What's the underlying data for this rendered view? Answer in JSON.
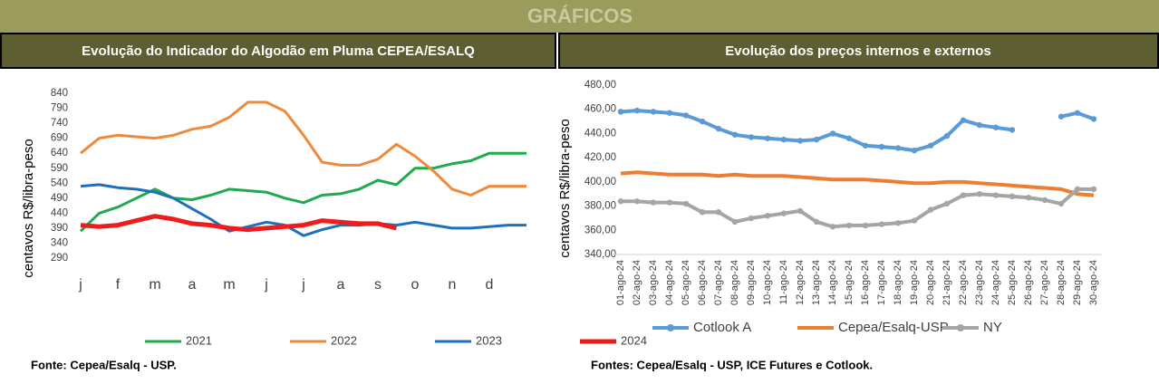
{
  "header": {
    "title": "GRÁFICOS"
  },
  "chart_data": [
    {
      "type": "line",
      "title": "Evolução do Indicador do Algodão em Pluma CEPEA/ESALQ",
      "y_label": "centavos R$/libra-peso",
      "source": "Fonte: Cepea/Esalq - USP.",
      "x": [
        0,
        0.5,
        1,
        1.5,
        2,
        2.5,
        3,
        3.5,
        4,
        4.5,
        5,
        5.5,
        6,
        6.5,
        7,
        7.5,
        8,
        8.5,
        9,
        9.5,
        10,
        10.5,
        11,
        11.5,
        12
      ],
      "xlim": [
        0,
        12
      ],
      "xticks": [
        {
          "value": 0,
          "label": "j"
        },
        {
          "value": 1,
          "label": "f"
        },
        {
          "value": 2,
          "label": "m"
        },
        {
          "value": 3,
          "label": "a"
        },
        {
          "value": 4,
          "label": "m"
        },
        {
          "value": 5,
          "label": "j"
        },
        {
          "value": 6,
          "label": "j"
        },
        {
          "value": 7,
          "label": "a"
        },
        {
          "value": 8,
          "label": "s"
        },
        {
          "value": 9,
          "label": "o"
        },
        {
          "value": 10,
          "label": "n"
        },
        {
          "value": 11,
          "label": "d"
        }
      ],
      "ylim": [
        290,
        840
      ],
      "yticks": [
        290,
        340,
        390,
        440,
        490,
        540,
        590,
        640,
        690,
        740,
        790,
        840
      ],
      "grid": false,
      "legend": "bottom",
      "series": [
        {
          "name": "2021",
          "color": "#1faa4e",
          "width": 3,
          "values": [
            380,
            440,
            460,
            490,
            520,
            490,
            485,
            500,
            520,
            515,
            510,
            490,
            475,
            500,
            505,
            520,
            550,
            535,
            590,
            590,
            605,
            615,
            640,
            640,
            640
          ]
        },
        {
          "name": "2022",
          "color": "#ef8a3c",
          "width": 3,
          "values": [
            640,
            690,
            700,
            695,
            690,
            700,
            720,
            730,
            760,
            810,
            810,
            780,
            700,
            610,
            600,
            600,
            620,
            670,
            630,
            580,
            520,
            500,
            530,
            530,
            530
          ]
        },
        {
          "name": "2023",
          "color": "#1f6fbf",
          "width": 3,
          "values": [
            530,
            535,
            525,
            520,
            510,
            490,
            455,
            420,
            380,
            395,
            410,
            400,
            365,
            385,
            400,
            400,
            405,
            400,
            410,
            400,
            390,
            390,
            395,
            400,
            400
          ]
        },
        {
          "name": "2024",
          "color": "#ee1c1c",
          "width": 5,
          "values": [
            400,
            395,
            400,
            415,
            430,
            420,
            405,
            400,
            390,
            385,
            390,
            395,
            400,
            415,
            410,
            405,
            405,
            390,
            null,
            null,
            null,
            null,
            null,
            null,
            null
          ]
        }
      ]
    },
    {
      "type": "line",
      "title": "Evolução dos preços internos e externos",
      "y_label": "centavos R$/libra-peso",
      "source": "Fontes: Cepea/Esalq - USP, ICE Futures e Cotlook.",
      "categories": [
        "01-ago-24",
        "02-ago-24",
        "03-ago-24",
        "04-ago-24",
        "05-ago-24",
        "06-ago-24",
        "07-ago-24",
        "08-ago-24",
        "09-ago-24",
        "10-ago-24",
        "11-ago-24",
        "12-ago-24",
        "13-ago-24",
        "14-ago-24",
        "15-ago-24",
        "16-ago-24",
        "17-ago-24",
        "18-ago-24",
        "19-ago-24",
        "20-ago-24",
        "21-ago-24",
        "22-ago-24",
        "23-ago-24",
        "24-ago-24",
        "25-ago-24",
        "26-ago-24",
        "27-ago-24",
        "28-ago-24",
        "29-ago-24",
        "30-ago-24"
      ],
      "ylim": [
        340,
        480
      ],
      "yticks": [
        {
          "value": 340,
          "label": "340,00"
        },
        {
          "value": 360,
          "label": "360,00"
        },
        {
          "value": 380,
          "label": "380,00"
        },
        {
          "value": 400,
          "label": "400,00"
        },
        {
          "value": 420,
          "label": "420,00"
        },
        {
          "value": 440,
          "label": "440,00"
        },
        {
          "value": 460,
          "label": "460,00"
        },
        {
          "value": 480,
          "label": "480,00"
        }
      ],
      "grid": false,
      "legend": "bottom",
      "series": [
        {
          "name": "Cotlook A",
          "color": "#5b9bd5",
          "width": 4,
          "marker": true,
          "values": [
            458,
            459,
            458,
            457,
            455,
            450,
            444,
            439,
            437,
            436,
            435,
            434,
            435,
            440,
            436,
            430,
            429,
            428,
            426,
            430,
            438,
            451,
            447,
            445,
            443,
            null,
            null,
            454,
            457,
            452
          ]
        },
        {
          "name": "Cepea/Esalq-USP",
          "color": "#ed7d31",
          "width": 4,
          "marker": false,
          "values": [
            407,
            408,
            407,
            406,
            406,
            406,
            405,
            406,
            405,
            405,
            405,
            404,
            403,
            402,
            402,
            402,
            401,
            400,
            399,
            399,
            400,
            400,
            399,
            398,
            397,
            396,
            395,
            394,
            390,
            389
          ]
        },
        {
          "name": "NY",
          "color": "#a5a5a5",
          "width": 4,
          "marker": true,
          "values": [
            384,
            384,
            383,
            383,
            382,
            375,
            375,
            367,
            370,
            372,
            374,
            376,
            367,
            363,
            364,
            364,
            365,
            366,
            368,
            377,
            382,
            389,
            390,
            389,
            388,
            387,
            385,
            382,
            394,
            394
          ]
        }
      ]
    }
  ]
}
